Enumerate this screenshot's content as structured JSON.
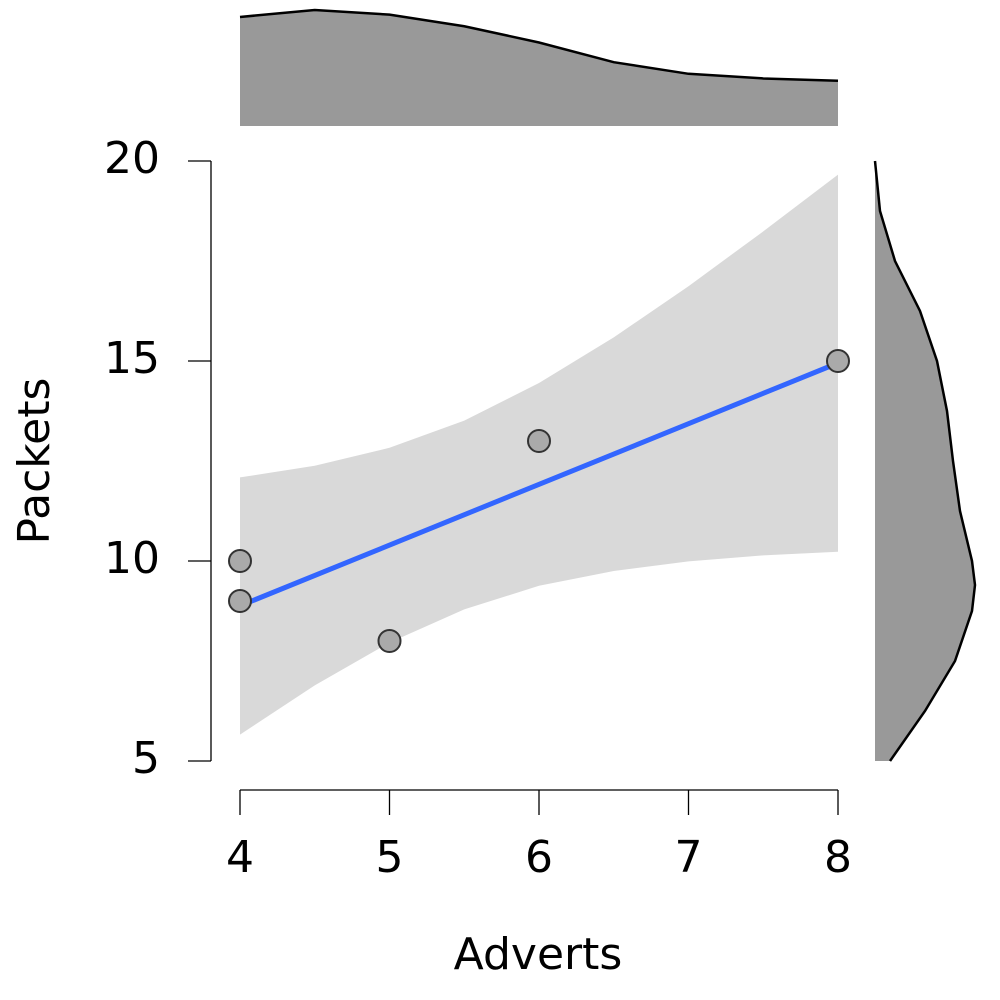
{
  "chart_data": {
    "type": "scatter",
    "x_label": "Adverts",
    "y_label": "Packets",
    "x": [
      4,
      4,
      5,
      6,
      8
    ],
    "y": [
      10,
      9,
      8,
      13,
      15
    ],
    "point_color": "#aaaaaa",
    "xlim": [
      4,
      8
    ],
    "xticks": [
      4,
      5,
      6,
      7,
      8
    ],
    "ylim": [
      5,
      20
    ],
    "yticks": [
      5,
      10,
      15,
      20
    ],
    "fit": {
      "x": [
        4,
        8
      ],
      "y": [
        8.88,
        14.95
      ],
      "color": "#3366ff"
    },
    "band": {
      "x": [
        4,
        4.5,
        5,
        5.5,
        6,
        6.5,
        7,
        7.5,
        8
      ],
      "lower": [
        5.66,
        6.89,
        7.96,
        8.79,
        9.38,
        9.75,
        9.99,
        10.14,
        10.23
      ],
      "upper": [
        12.09,
        12.38,
        12.83,
        13.51,
        14.45,
        15.59,
        16.87,
        18.24,
        19.66
      ],
      "color": "#d9d9d9"
    },
    "x_density": {
      "x": [
        4,
        4.5,
        5,
        5.5,
        6,
        6.5,
        7,
        7.5,
        8
      ],
      "values": [
        0.94,
        1.0,
        0.96,
        0.86,
        0.72,
        0.55,
        0.45,
        0.41,
        0.39
      ],
      "color": "#999999"
    },
    "y_density": {
      "y": [
        20,
        18.75,
        17.5,
        16.25,
        15,
        13.75,
        12.5,
        11.25,
        10,
        9.4,
        8.75,
        7.5,
        6.25,
        5
      ],
      "values": [
        0,
        0.05,
        0.2,
        0.45,
        0.62,
        0.72,
        0.78,
        0.85,
        0.97,
        1.0,
        0.97,
        0.8,
        0.5,
        0.15
      ],
      "color": "#999999"
    }
  }
}
